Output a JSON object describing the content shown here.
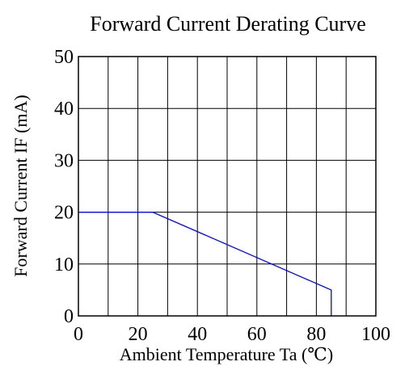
{
  "chart_data": {
    "type": "line",
    "title": "Forward Current Derating Curve",
    "xlabel": "Ambient Temperature Ta (℃)",
    "ylabel": "Forward Current IF (mA)",
    "xlim": [
      0,
      100
    ],
    "ylim": [
      0,
      50
    ],
    "xticks": [
      0,
      20,
      40,
      60,
      80,
      100
    ],
    "yticks": [
      0,
      10,
      20,
      30,
      40,
      50
    ],
    "grid": true,
    "series": [
      {
        "color": "#0000ff",
        "x": [
          0,
          25,
          85,
          85
        ],
        "y": [
          20,
          20,
          5,
          0
        ]
      }
    ]
  }
}
